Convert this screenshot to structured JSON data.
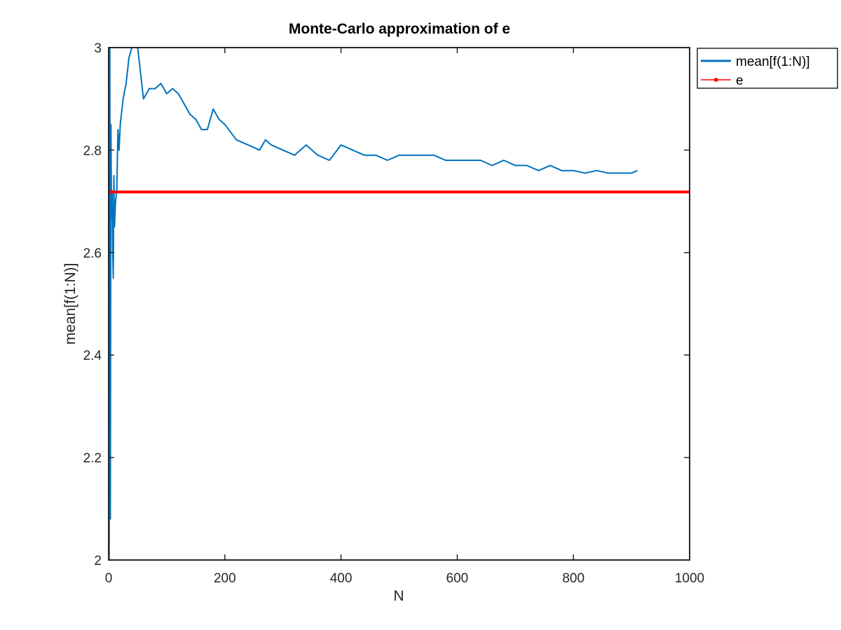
{
  "chart_data": {
    "type": "line",
    "title": "Monte-Carlo approximation of e",
    "xlabel": "N",
    "ylabel": "mean[f(1:N)]",
    "xlim": [
      0,
      1000
    ],
    "ylim": [
      2,
      3
    ],
    "xticks": [
      "0",
      "200",
      "400",
      "600",
      "800",
      "1000"
    ],
    "yticks": [
      "2",
      "2.2",
      "2.4",
      "2.6",
      "2.8",
      "3"
    ],
    "grid": false,
    "legend_position": "outside-top-right",
    "series": [
      {
        "name": "mean[f(1:N)]",
        "color": "#0072BD",
        "x": [
          1,
          2,
          3,
          4,
          5,
          6,
          7,
          8,
          9,
          10,
          12,
          14,
          16,
          18,
          20,
          25,
          30,
          35,
          40,
          45,
          50,
          55,
          60,
          70,
          80,
          90,
          100,
          110,
          120,
          130,
          140,
          150,
          160,
          170,
          180,
          190,
          200,
          220,
          240,
          260,
          270,
          280,
          300,
          320,
          340,
          360,
          380,
          400,
          420,
          440,
          460,
          480,
          500,
          520,
          540,
          560,
          580,
          600,
          620,
          640,
          660,
          680,
          700,
          720,
          740,
          760,
          780,
          800,
          820,
          840,
          860,
          880,
          900,
          910
        ],
        "y": [
          2.0,
          3.0,
          2.08,
          2.85,
          2.67,
          2.72,
          2.6,
          2.55,
          2.75,
          2.65,
          2.7,
          2.72,
          2.84,
          2.8,
          2.85,
          2.9,
          2.93,
          2.98,
          3.0,
          3.0,
          3.0,
          2.95,
          2.9,
          2.92,
          2.92,
          2.93,
          2.91,
          2.92,
          2.91,
          2.89,
          2.87,
          2.86,
          2.84,
          2.84,
          2.88,
          2.86,
          2.85,
          2.82,
          2.81,
          2.8,
          2.82,
          2.81,
          2.8,
          2.79,
          2.81,
          2.79,
          2.78,
          2.81,
          2.8,
          2.79,
          2.79,
          2.78,
          2.79,
          2.79,
          2.79,
          2.79,
          2.78,
          2.78,
          2.78,
          2.78,
          2.77,
          2.78,
          2.77,
          2.77,
          2.76,
          2.77,
          2.76,
          2.76,
          2.755,
          2.76,
          2.755,
          2.755,
          2.755,
          2.76
        ]
      },
      {
        "name": "e",
        "color": "#FF0000",
        "x": [
          0,
          1000
        ],
        "y": [
          2.71828,
          2.71828
        ]
      }
    ]
  }
}
